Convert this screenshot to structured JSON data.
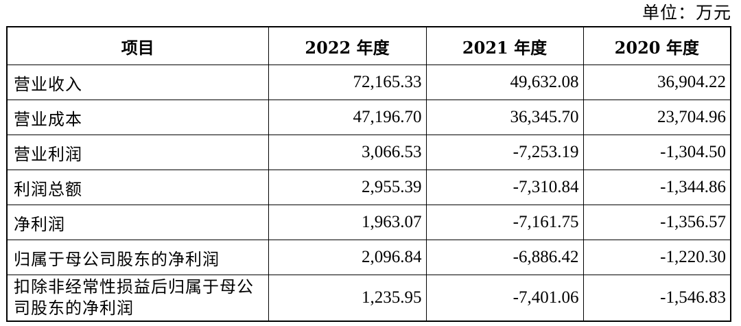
{
  "unit_label": "单位：万元",
  "headers": [
    "项目",
    "2022 年度",
    "2021 年度",
    "2020 年度"
  ],
  "rows": [
    {
      "item": "营业收入",
      "y2022": "72,165.33",
      "y2021": "49,632.08",
      "y2020": "36,904.22"
    },
    {
      "item": "营业成本",
      "y2022": "47,196.70",
      "y2021": "36,345.70",
      "y2020": "23,704.96"
    },
    {
      "item": "营业利润",
      "y2022": "3,066.53",
      "y2021": "-7,253.19",
      "y2020": "-1,304.50"
    },
    {
      "item": "利润总额",
      "y2022": "2,955.39",
      "y2021": "-7,310.84",
      "y2020": "-1,344.86"
    },
    {
      "item": "净利润",
      "y2022": "1,963.07",
      "y2021": "-7,161.75",
      "y2020": "-1,356.57"
    },
    {
      "item": "归属于母公司股东的净利润",
      "y2022": "2,096.84",
      "y2021": "-6,886.42",
      "y2020": "-1,220.30"
    },
    {
      "item": "扣除非经常性损益后归属于母公司股东的净利润",
      "y2022": "1,235.95",
      "y2021": "-7,401.06",
      "y2020": "-1,546.83"
    }
  ]
}
